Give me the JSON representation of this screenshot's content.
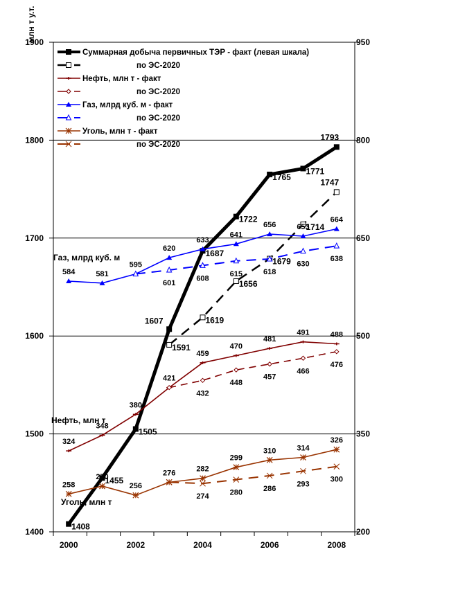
{
  "chart_data": {
    "type": "line",
    "title": "",
    "ylabel": "млн т у.т.",
    "x": [
      "2000",
      "2001",
      "2002",
      "2003",
      "2004",
      "2005",
      "2006",
      "2007",
      "2008"
    ],
    "x_tick_labels": [
      "2000",
      "2002",
      "2004",
      "2006",
      "2008"
    ],
    "ylim_left": [
      1400,
      1900
    ],
    "yticks_left": [
      "1400",
      "1500",
      "1600",
      "1700",
      "1800",
      "1900"
    ],
    "ylim_right": [
      200,
      950
    ],
    "yticks_right": [
      "200",
      "350",
      "500",
      "650",
      "800",
      "950"
    ],
    "grid": true,
    "legend_position": "top-left",
    "annotations": {
      "gas": "Газ, млрд куб. м",
      "oil": "Нефть, млн т",
      "coal": "Уголь, млн т"
    },
    "series": [
      {
        "name": "Суммарная добыча первичных ТЭР - факт (левая шкала)",
        "axis": "left",
        "color": "#000000",
        "style": "solid",
        "marker": "square-filled",
        "values": [
          1408,
          1455,
          1505,
          1607,
          1687,
          1722,
          1765,
          1771,
          1793
        ]
      },
      {
        "name": "по ЭС-2020",
        "axis": "left",
        "color": "#000000",
        "style": "dashed",
        "marker": "square-open",
        "values": [
          null,
          null,
          null,
          1591,
          1619,
          1656,
          1679,
          1714,
          1747
        ]
      },
      {
        "name": "Нефть, млн т - факт",
        "axis": "right",
        "color": "#800000",
        "style": "solid",
        "marker": "plus",
        "values": [
          324,
          348,
          380,
          421,
          459,
          470,
          481,
          491,
          488
        ]
      },
      {
        "name": "по ЭС-2020",
        "axis": "right",
        "color": "#800000",
        "style": "dashed",
        "marker": "diamond-open",
        "values": [
          null,
          null,
          null,
          421,
          432,
          448,
          457,
          466,
          476
        ]
      },
      {
        "name": "Газ, млрд куб. м - факт",
        "axis": "right",
        "color": "#0000ff",
        "style": "solid",
        "marker": "triangle-filled",
        "values": [
          584,
          581,
          595,
          620,
          633,
          641,
          656,
          653,
          664
        ]
      },
      {
        "name": "по ЭС-2020",
        "axis": "right",
        "color": "#0000ff",
        "style": "dashed",
        "marker": "triangle-open",
        "values": [
          null,
          null,
          595,
          601,
          608,
          615,
          618,
          630,
          638
        ]
      },
      {
        "name": "Уголь, млн т - факт",
        "axis": "right",
        "color": "#993300",
        "style": "solid",
        "marker": "asterisk",
        "values": [
          258,
          270,
          256,
          276,
          282,
          299,
          310,
          314,
          326
        ]
      },
      {
        "name": "по ЭС-2020",
        "axis": "right",
        "color": "#993300",
        "style": "dashed",
        "marker": "x",
        "values": [
          null,
          null,
          null,
          276,
          274,
          280,
          286,
          293,
          300
        ]
      }
    ]
  }
}
